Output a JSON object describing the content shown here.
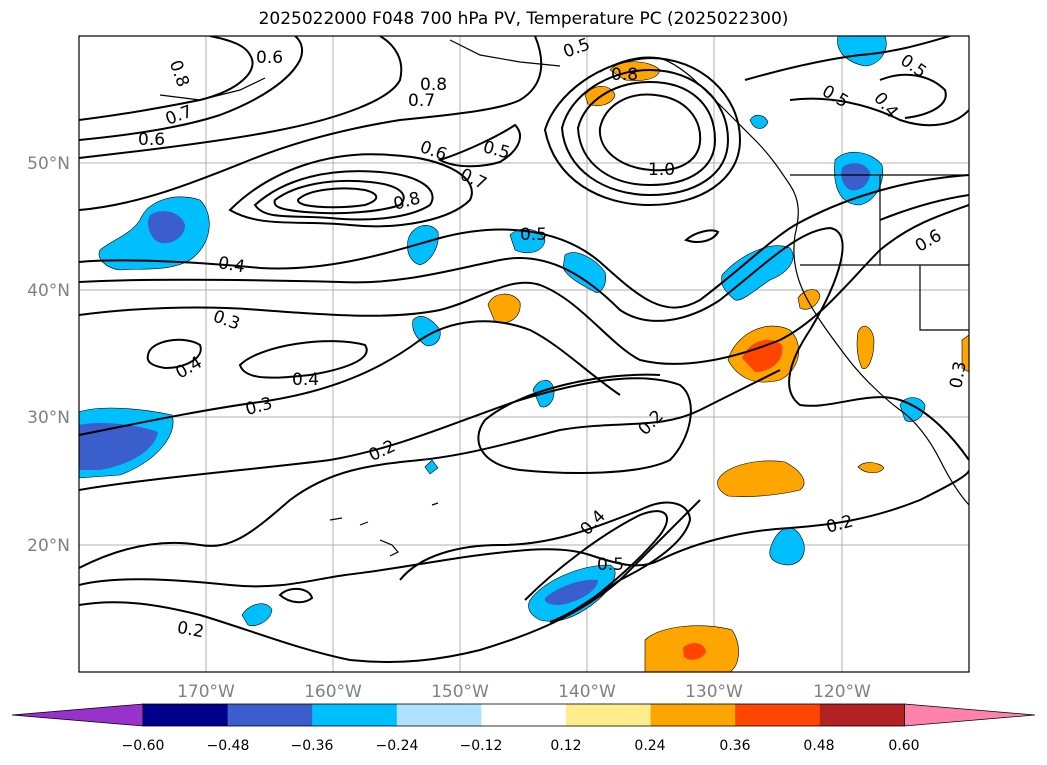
{
  "title": "2025022000 F048 700 hPa PV, Temperature PC (2025022300)",
  "map": {
    "projection": "lat-lon",
    "lon_range": [
      -180,
      -110
    ],
    "lat_range": [
      10,
      60
    ],
    "lat_labels": [
      "20°N",
      "30°N",
      "40°N",
      "50°N"
    ],
    "lon_labels": [
      "170°W",
      "160°W",
      "150°W",
      "140°W",
      "130°W",
      "120°W"
    ],
    "grid": true
  },
  "contour_labels": [
    "0.6",
    "0.8",
    "0.7",
    "0.6",
    "0.8",
    "0.7",
    "0.5",
    "0.8",
    "0.6",
    "0.7",
    "0.5",
    "1.0",
    "0.8",
    "0.5",
    "0.5",
    "0.4",
    "0.4",
    "0.5",
    "0.6",
    "0.3",
    "0.4",
    "0.4",
    "0.3",
    "0.2",
    "0.2",
    "0.4",
    "0.5",
    "0.2",
    "0.2",
    "0.3"
  ],
  "colorbar": {
    "ticks": [
      "−0.60",
      "−0.48",
      "−0.36",
      "−0.24",
      "−0.12",
      "0.12",
      "0.24",
      "0.36",
      "0.48",
      "0.60"
    ],
    "colors": [
      "#9932cc",
      "#00008b",
      "#3a5fcd",
      "#00bfff",
      "#b0e2ff",
      "#ffffff",
      "#ffec8b",
      "#ffa500",
      "#ff4500",
      "#b22222",
      "#ff82ab"
    ],
    "extend": "both"
  }
}
